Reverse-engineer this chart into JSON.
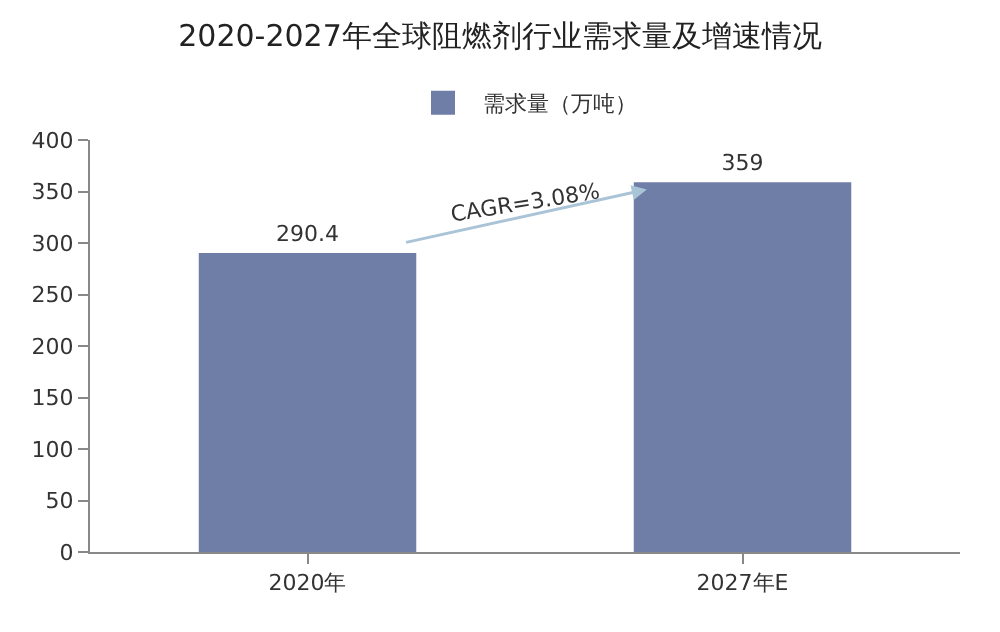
{
  "chart_data": {
    "type": "bar",
    "title": "2020-2027年全球阻燃剂行业需求量及增速情况",
    "categories": [
      "2020年",
      "2027年E"
    ],
    "series": [
      {
        "name": "需求量（万吨）",
        "color": "#6f7ea6",
        "values": [
          290.4,
          359
        ]
      }
    ],
    "ylim": [
      0,
      400
    ],
    "yticks": [
      0,
      50,
      100,
      150,
      200,
      250,
      300,
      350,
      400
    ],
    "annotations": [
      "CAGR=3.08%"
    ],
    "data_labels": true,
    "legend": "top",
    "grid": false
  }
}
